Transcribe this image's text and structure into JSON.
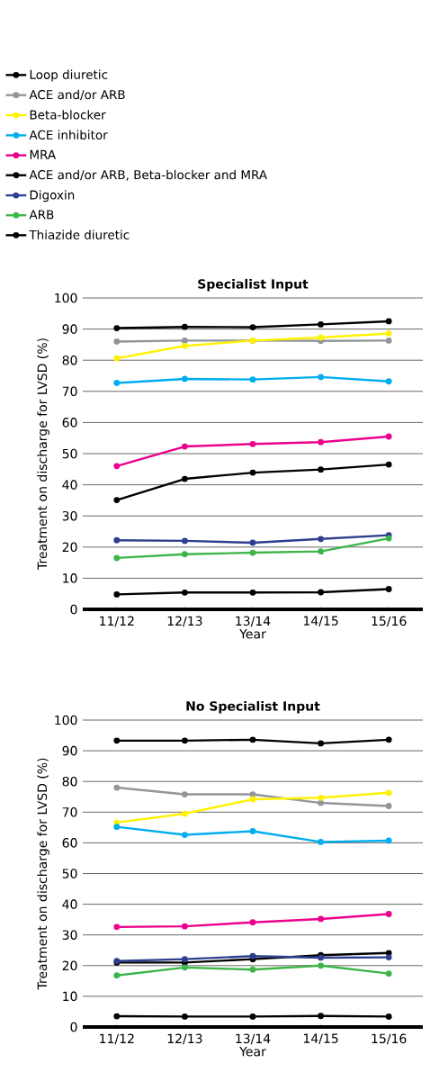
{
  "chart_data": [
    {
      "type": "line",
      "title": "Specialist Input",
      "xlabel": "Year",
      "ylabel": "Treatment on discharge for LVSD (%)",
      "categories": [
        "11/12",
        "12/13",
        "13/14",
        "14/15",
        "15/16"
      ],
      "ylim": [
        0,
        100
      ],
      "yticks": [
        0,
        10,
        20,
        30,
        40,
        50,
        60,
        70,
        80,
        90,
        100
      ],
      "grid": "y",
      "marker": "circle",
      "legend": "top",
      "series": [
        {
          "name": "Loop diuretic",
          "color": "#000000",
          "values": [
            90.3,
            90.7,
            90.6,
            91.5,
            92.5
          ]
        },
        {
          "name": "ACE and/or ARB",
          "color": "#939598",
          "values": [
            86.0,
            86.3,
            86.3,
            86.2,
            86.3
          ]
        },
        {
          "name": "Beta-blocker",
          "color": "#fff200",
          "values": [
            80.6,
            84.6,
            86.3,
            87.3,
            88.6
          ]
        },
        {
          "name": "ACE inhibitor",
          "color": "#00aeef",
          "values": [
            72.7,
            74.0,
            73.8,
            74.6,
            73.2
          ]
        },
        {
          "name": "MRA",
          "color": "#ec008c",
          "values": [
            46.0,
            52.3,
            53.1,
            53.7,
            55.5
          ]
        },
        {
          "name": "ACE and/or ARB, Beta-blocker and MRA",
          "color": "#000000",
          "values": [
            35.1,
            41.9,
            43.9,
            44.9,
            46.5
          ]
        },
        {
          "name": "Digoxin",
          "color": "#2e3f8f",
          "values": [
            22.2,
            22.0,
            21.4,
            22.6,
            23.8
          ]
        },
        {
          "name": "ARB",
          "color": "#3db54a",
          "values": [
            16.5,
            17.7,
            18.2,
            18.6,
            22.8
          ]
        },
        {
          "name": "Thiazide diuretic",
          "color": "#000000",
          "values": [
            4.8,
            5.4,
            5.4,
            5.5,
            6.5
          ]
        }
      ]
    },
    {
      "type": "line",
      "title": "No Specialist Input",
      "xlabel": "Year",
      "ylabel": "Treatment on discharge for LVSD (%)",
      "categories": [
        "11/12",
        "12/13",
        "13/14",
        "14/15",
        "15/16"
      ],
      "ylim": [
        0,
        100
      ],
      "yticks": [
        0,
        10,
        20,
        30,
        40,
        50,
        60,
        70,
        80,
        90,
        100
      ],
      "grid": "y",
      "marker": "circle",
      "series": [
        {
          "color": "#000000",
          "values": [
            93.3,
            93.3,
            93.6,
            92.4,
            93.6
          ]
        },
        {
          "color": "#939598",
          "values": [
            78.0,
            75.8,
            75.8,
            73.0,
            72.0
          ]
        },
        {
          "color": "#fff200",
          "values": [
            66.6,
            69.5,
            74.2,
            74.7,
            76.3
          ]
        },
        {
          "color": "#00aeef",
          "values": [
            65.2,
            62.6,
            63.8,
            60.3,
            60.7
          ]
        },
        {
          "color": "#ec008c",
          "values": [
            32.6,
            32.8,
            34.1,
            35.2,
            36.8
          ]
        },
        {
          "color": "#000000",
          "values": [
            21.0,
            21.0,
            22.1,
            23.4,
            24.1
          ]
        },
        {
          "color": "#2e3f8f",
          "values": [
            21.5,
            22.1,
            23.1,
            22.6,
            22.7
          ]
        },
        {
          "color": "#3db54a",
          "values": [
            16.8,
            19.4,
            18.7,
            20.0,
            17.4
          ]
        },
        {
          "color": "#000000",
          "values": [
            3.5,
            3.4,
            3.4,
            3.6,
            3.4
          ]
        }
      ]
    }
  ]
}
